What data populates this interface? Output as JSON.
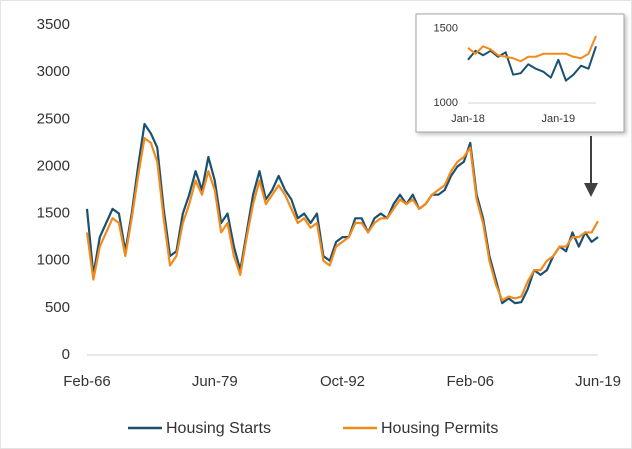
{
  "chart_data": [
    {
      "type": "line",
      "categories": [
        "Feb-66",
        null,
        null,
        null,
        null,
        null,
        null,
        null,
        null,
        null,
        null,
        null,
        null,
        null,
        null,
        null,
        null,
        null,
        null,
        null,
        "Jun-79",
        null,
        null,
        null,
        null,
        null,
        null,
        null,
        null,
        null,
        null,
        null,
        null,
        null,
        null,
        null,
        null,
        null,
        null,
        null,
        "Oct-92",
        null,
        null,
        null,
        null,
        null,
        null,
        null,
        null,
        null,
        null,
        null,
        null,
        null,
        null,
        null,
        null,
        null,
        null,
        null,
        "Feb-06",
        null,
        null,
        null,
        null,
        null,
        null,
        null,
        null,
        null,
        null,
        null,
        null,
        null,
        null,
        null,
        null,
        null,
        null,
        null,
        "Jun-19"
      ],
      "series": [
        {
          "name": "Housing Starts",
          "color": "#1b5170",
          "values": [
            1550,
            850,
            1250,
            1400,
            1550,
            1500,
            1100,
            1500,
            2000,
            2450,
            2350,
            2200,
            1550,
            1050,
            1100,
            1500,
            1700,
            1950,
            1750,
            2100,
            1850,
            1400,
            1500,
            1150,
            900,
            1300,
            1700,
            1950,
            1650,
            1750,
            1900,
            1750,
            1650,
            1450,
            1500,
            1400,
            1500,
            1050,
            1000,
            1200,
            1250,
            1250,
            1450,
            1450,
            1300,
            1450,
            1500,
            1450,
            1600,
            1700,
            1600,
            1700,
            1550,
            1600,
            1700,
            1700,
            1750,
            1900,
            2000,
            2050,
            2250,
            1700,
            1450,
            1050,
            800,
            550,
            600,
            550,
            560,
            700,
            900,
            850,
            900,
            1050,
            1150,
            1100,
            1300,
            1150,
            1300,
            1200,
            1250
          ]
        },
        {
          "name": "Housing Permits",
          "color": "#f28a1c",
          "values": [
            1300,
            800,
            1150,
            1300,
            1450,
            1400,
            1050,
            1450,
            1900,
            2300,
            2250,
            2050,
            1450,
            950,
            1050,
            1400,
            1600,
            1850,
            1700,
            1950,
            1750,
            1300,
            1400,
            1050,
            850,
            1250,
            1600,
            1850,
            1600,
            1700,
            1800,
            1700,
            1550,
            1400,
            1450,
            1350,
            1400,
            1000,
            950,
            1150,
            1200,
            1250,
            1400,
            1400,
            1300,
            1400,
            1450,
            1450,
            1550,
            1650,
            1600,
            1650,
            1550,
            1600,
            1700,
            1750,
            1800,
            1950,
            2050,
            2100,
            2200,
            1650,
            1400,
            1000,
            750,
            580,
            620,
            600,
            620,
            780,
            900,
            900,
            1000,
            1050,
            1150,
            1150,
            1250,
            1250,
            1300,
            1300,
            1420
          ]
        }
      ],
      "ylim": [
        0,
        3500
      ],
      "yticks": [
        0,
        500,
        1000,
        1500,
        2000,
        2500,
        3000,
        3500
      ]
    },
    {
      "type": "line",
      "categories": [
        "Jan-18",
        null,
        null,
        null,
        null,
        null,
        null,
        null,
        null,
        null,
        null,
        null,
        "Jan-19",
        null,
        null,
        null,
        null,
        null
      ],
      "series": [
        {
          "name": "Housing Starts",
          "color": "#1b5170",
          "values": [
            1290,
            1350,
            1320,
            1350,
            1310,
            1340,
            1190,
            1200,
            1260,
            1230,
            1210,
            1170,
            1290,
            1150,
            1190,
            1250,
            1230,
            1380
          ]
        },
        {
          "name": "Housing Permits",
          "color": "#f28a1c",
          "values": [
            1370,
            1330,
            1380,
            1360,
            1320,
            1310,
            1300,
            1280,
            1310,
            1310,
            1330,
            1330,
            1330,
            1330,
            1310,
            1300,
            1330,
            1450
          ]
        }
      ],
      "ylim": [
        1000,
        1550
      ],
      "yticks": [
        1000,
        1500
      ]
    }
  ]
}
